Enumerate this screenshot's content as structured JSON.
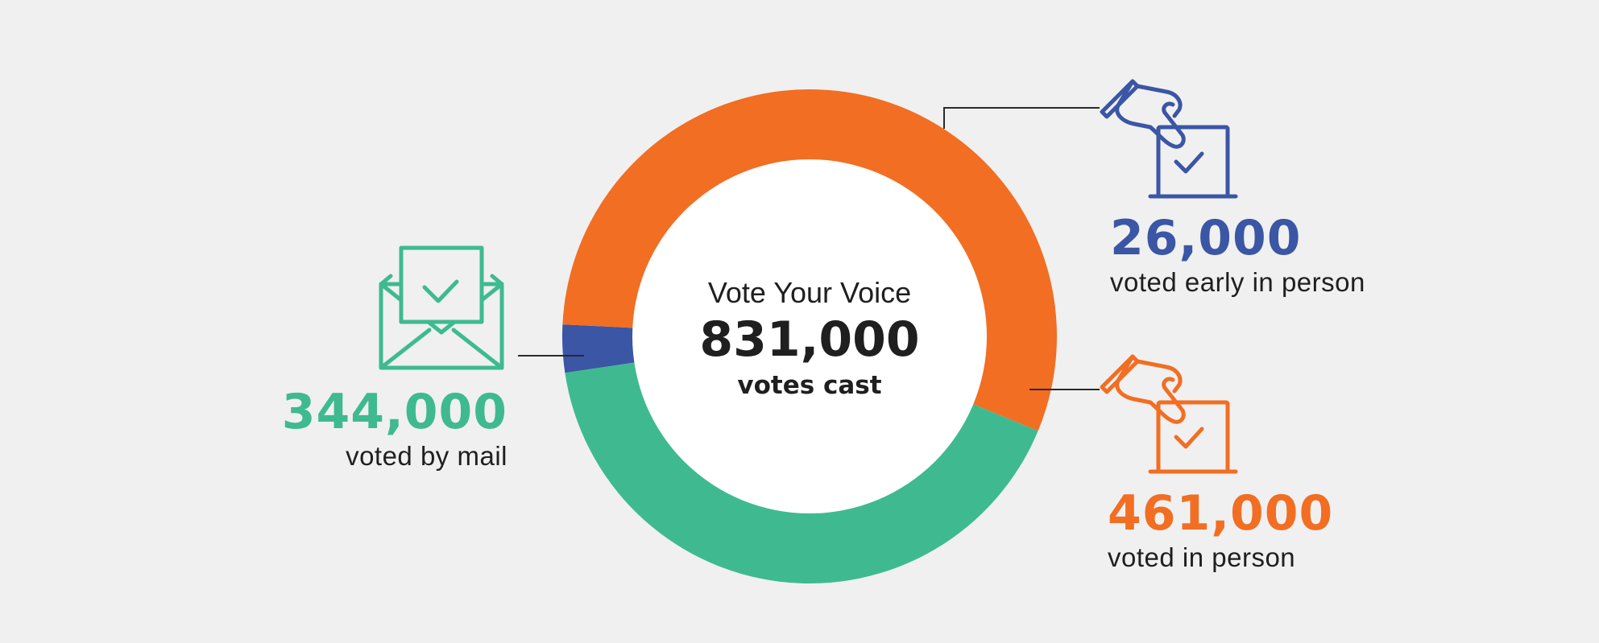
{
  "chart_data": {
    "type": "pie",
    "title": "Vote Your Voice",
    "total_value": "831,000",
    "total_label": "votes cast",
    "categories": [
      "voted by mail",
      "voted early in person",
      "voted in person"
    ],
    "values": [
      344000,
      26000,
      461000
    ],
    "value_labels": [
      "344,000",
      "26,000",
      "461,000"
    ],
    "colors": [
      "#3fba90",
      "#3a56a5",
      "#f26e23"
    ],
    "hole": true
  },
  "icons": {
    "mail": "envelope-check-icon",
    "early": "hand-ballot-box-icon",
    "person": "hand-ballot-box-icon"
  },
  "colors": {
    "background": "#f0f0f0",
    "center": "#ffffff",
    "text": "#1f1f1f",
    "leader": "#2a2a2a"
  }
}
